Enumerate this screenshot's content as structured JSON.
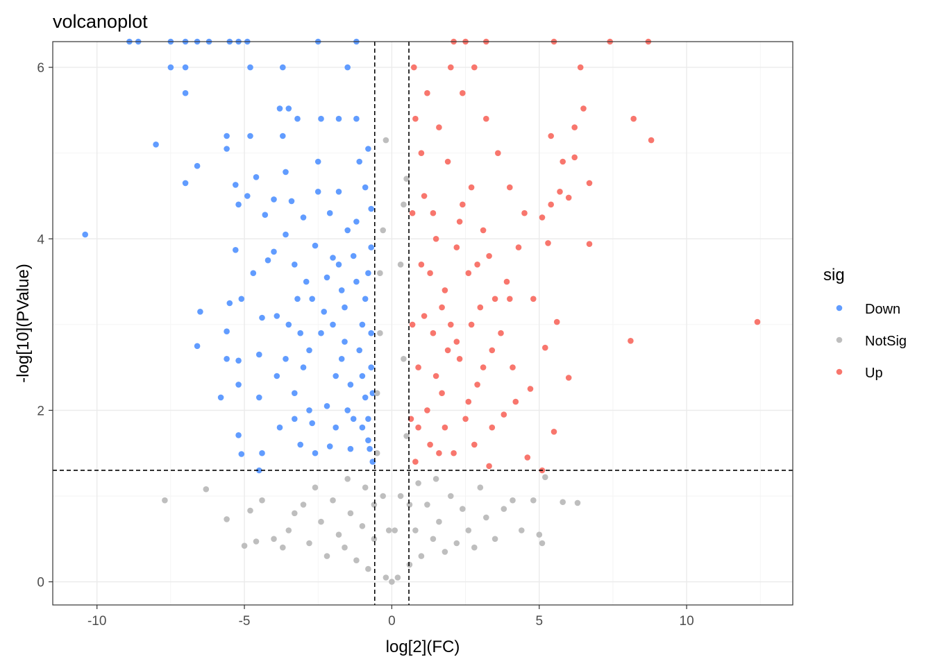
{
  "chart_data": {
    "type": "scatter",
    "title": "volcanoplot",
    "xlabel": "log[2](FC)",
    "ylabel": "-log[10](PValue)",
    "xlim": [
      -11.5,
      13.6
    ],
    "ylim": [
      -0.27,
      6.3
    ],
    "x_ticks": [
      -10,
      -5,
      0,
      5,
      10
    ],
    "x_tick_labels": [
      "-10",
      "-5",
      "0",
      "5",
      "10"
    ],
    "y_ticks": [
      0,
      2,
      4,
      6
    ],
    "y_tick_labels": [
      "0",
      "2",
      "4",
      "6"
    ],
    "grid": true,
    "thresholds": {
      "log2fc": [
        -0.58,
        0.58
      ],
      "neg_log10_p": 1.3
    },
    "legend": {
      "title": "sig",
      "position": "right",
      "entries": [
        {
          "name": "Down",
          "color": "#619CFF"
        },
        {
          "name": "NotSig",
          "color": "#BEBEBE"
        },
        {
          "name": "Up",
          "color": "#F8766D"
        }
      ]
    },
    "series": [
      {
        "name": "Down",
        "color": "#619CFF",
        "points": [
          [
            -10.4,
            4.05
          ],
          [
            -8.0,
            5.1
          ],
          [
            -7.5,
            6.0
          ],
          [
            -7.0,
            6.0
          ],
          [
            -7.0,
            5.7
          ],
          [
            -7.0,
            4.65
          ],
          [
            -6.6,
            4.85
          ],
          [
            -6.5,
            3.15
          ],
          [
            -6.6,
            2.75
          ],
          [
            -5.8,
            2.15
          ],
          [
            -5.6,
            5.2
          ],
          [
            -5.6,
            5.05
          ],
          [
            -5.6,
            2.92
          ],
          [
            -5.6,
            2.6
          ],
          [
            -5.5,
            3.25
          ],
          [
            -5.3,
            3.87
          ],
          [
            -5.3,
            4.63
          ],
          [
            -5.2,
            4.4
          ],
          [
            -5.2,
            2.58
          ],
          [
            -5.2,
            2.3
          ],
          [
            -5.2,
            1.71
          ],
          [
            -5.1,
            1.49
          ],
          [
            -5.1,
            3.3
          ],
          [
            -4.9,
            4.5
          ],
          [
            -4.8,
            5.2
          ],
          [
            -4.8,
            6.0
          ],
          [
            -4.7,
            3.6
          ],
          [
            -4.6,
            4.72
          ],
          [
            -4.5,
            2.65
          ],
          [
            -4.5,
            2.15
          ],
          [
            -4.4,
            3.08
          ],
          [
            -4.4,
            1.5
          ],
          [
            -4.5,
            1.3
          ],
          [
            -4.3,
            4.28
          ],
          [
            -4.2,
            3.75
          ],
          [
            -4.0,
            3.85
          ],
          [
            -4.0,
            4.46
          ],
          [
            -3.9,
            2.4
          ],
          [
            -3.8,
            1.8
          ],
          [
            -3.8,
            5.52
          ],
          [
            -3.7,
            5.2
          ],
          [
            -3.6,
            4.05
          ],
          [
            -3.6,
            4.78
          ],
          [
            -3.7,
            6.0
          ],
          [
            -3.5,
            5.52
          ],
          [
            -3.4,
            4.44
          ],
          [
            -3.3,
            3.7
          ],
          [
            -3.2,
            3.3
          ],
          [
            -3.3,
            2.2
          ],
          [
            -3.1,
            1.6
          ],
          [
            -3.2,
            5.4
          ],
          [
            -3.0,
            4.25
          ],
          [
            -2.9,
            3.5
          ],
          [
            -2.8,
            2.7
          ],
          [
            -2.7,
            1.85
          ],
          [
            -2.6,
            3.92
          ],
          [
            -2.5,
            4.55
          ],
          [
            -2.5,
            4.9
          ],
          [
            -2.4,
            5.4
          ],
          [
            -2.3,
            3.15
          ],
          [
            -2.2,
            2.05
          ],
          [
            -2.1,
            1.58
          ],
          [
            -2.0,
            3.78
          ],
          [
            -1.9,
            2.4
          ],
          [
            -1.8,
            4.55
          ],
          [
            -1.8,
            5.4
          ],
          [
            -1.7,
            3.4
          ],
          [
            -1.6,
            2.8
          ],
          [
            -1.5,
            2.0
          ],
          [
            -1.5,
            6.0
          ],
          [
            -1.4,
            1.55
          ],
          [
            -1.3,
            3.8
          ],
          [
            -1.2,
            4.2
          ],
          [
            -1.2,
            5.4
          ],
          [
            -1.1,
            4.9
          ],
          [
            -1.0,
            3.0
          ],
          [
            -0.9,
            2.15
          ],
          [
            -0.8,
            1.65
          ],
          [
            -0.9,
            4.6
          ],
          [
            -0.8,
            3.6
          ],
          [
            -0.7,
            2.5
          ],
          [
            -0.65,
            1.4
          ],
          [
            -0.7,
            4.35
          ],
          [
            -0.8,
            5.05
          ],
          [
            -8.9,
            6.3
          ],
          [
            -8.6,
            6.3
          ],
          [
            -7.5,
            6.3
          ],
          [
            -7.0,
            6.3
          ],
          [
            -6.6,
            6.3
          ],
          [
            -6.2,
            6.3
          ],
          [
            -5.5,
            6.3
          ],
          [
            -5.2,
            6.3
          ],
          [
            -4.9,
            6.3
          ],
          [
            -2.5,
            6.3
          ],
          [
            -1.2,
            6.3
          ],
          [
            -3.5,
            3.0
          ],
          [
            -3.0,
            2.5
          ],
          [
            -2.8,
            2.0
          ],
          [
            -2.6,
            1.5
          ],
          [
            -2.4,
            2.9
          ],
          [
            -2.2,
            3.55
          ],
          [
            -2.0,
            3.0
          ],
          [
            -1.9,
            1.8
          ],
          [
            -1.7,
            2.6
          ],
          [
            -1.6,
            3.2
          ],
          [
            -1.4,
            2.3
          ],
          [
            -1.3,
            1.9
          ],
          [
            -1.2,
            3.5
          ],
          [
            -1.1,
            2.7
          ],
          [
            -1.0,
            1.8
          ],
          [
            -1.0,
            2.4
          ],
          [
            -0.9,
            3.3
          ],
          [
            -0.8,
            1.9
          ],
          [
            -0.7,
            2.9
          ],
          [
            -0.7,
            3.9
          ],
          [
            -0.75,
            1.55
          ],
          [
            -0.65,
            2.2
          ],
          [
            -1.5,
            4.1
          ],
          [
            -1.8,
            3.7
          ],
          [
            -2.1,
            4.3
          ],
          [
            -2.7,
            3.3
          ],
          [
            -3.1,
            2.9
          ],
          [
            -3.3,
            1.9
          ],
          [
            -3.6,
            2.6
          ],
          [
            -3.9,
            3.1
          ]
        ]
      },
      {
        "name": "NotSig",
        "color": "#BEBEBE",
        "points": [
          [
            -7.7,
            0.95
          ],
          [
            -6.3,
            1.08
          ],
          [
            -5.6,
            0.73
          ],
          [
            -5.0,
            0.42
          ],
          [
            -4.8,
            0.83
          ],
          [
            -4.6,
            0.47
          ],
          [
            -4.4,
            0.95
          ],
          [
            -4.0,
            0.5
          ],
          [
            -3.7,
            0.4
          ],
          [
            -3.5,
            0.6
          ],
          [
            -3.3,
            0.8
          ],
          [
            -3.0,
            0.9
          ],
          [
            -2.8,
            0.45
          ],
          [
            -2.6,
            1.1
          ],
          [
            -2.4,
            0.7
          ],
          [
            -2.2,
            0.3
          ],
          [
            -2.0,
            0.95
          ],
          [
            -1.8,
            0.55
          ],
          [
            -1.6,
            0.4
          ],
          [
            -1.4,
            0.8
          ],
          [
            -1.2,
            0.25
          ],
          [
            -1.0,
            0.65
          ],
          [
            -0.8,
            0.15
          ],
          [
            -0.6,
            0.5
          ],
          [
            -0.5,
            1.5
          ],
          [
            -0.5,
            2.2
          ],
          [
            -0.4,
            2.9
          ],
          [
            -0.4,
            3.6
          ],
          [
            -0.3,
            4.1
          ],
          [
            -0.2,
            0.05
          ],
          [
            0.0,
            0.0
          ],
          [
            0.2,
            0.05
          ],
          [
            -0.2,
            5.15
          ],
          [
            0.3,
            3.7
          ],
          [
            0.4,
            4.4
          ],
          [
            0.4,
            2.6
          ],
          [
            0.5,
            1.7
          ],
          [
            0.5,
            4.7
          ],
          [
            0.6,
            0.2
          ],
          [
            0.8,
            0.6
          ],
          [
            1.0,
            0.3
          ],
          [
            1.2,
            0.9
          ],
          [
            1.4,
            0.5
          ],
          [
            1.6,
            0.7
          ],
          [
            1.8,
            0.35
          ],
          [
            2.0,
            1.0
          ],
          [
            2.2,
            0.45
          ],
          [
            2.4,
            0.85
          ],
          [
            2.6,
            0.6
          ],
          [
            2.8,
            0.4
          ],
          [
            3.0,
            1.1
          ],
          [
            3.2,
            0.75
          ],
          [
            3.5,
            0.5
          ],
          [
            3.8,
            0.85
          ],
          [
            4.1,
            0.95
          ],
          [
            4.4,
            0.6
          ],
          [
            4.8,
            0.95
          ],
          [
            5.0,
            0.55
          ],
          [
            5.1,
            0.45
          ],
          [
            5.2,
            1.22
          ],
          [
            5.8,
            0.93
          ],
          [
            6.3,
            0.92
          ],
          [
            -1.5,
            1.2
          ],
          [
            -0.9,
            1.1
          ],
          [
            0.9,
            1.15
          ],
          [
            1.5,
            1.2
          ],
          [
            -0.3,
            1.0
          ],
          [
            0.3,
            1.0
          ],
          [
            -0.1,
            0.6
          ],
          [
            0.1,
            0.6
          ],
          [
            -0.6,
            0.9
          ],
          [
            0.6,
            0.9
          ]
        ]
      },
      {
        "name": "Up",
        "color": "#F8766D",
        "points": [
          [
            12.4,
            3.03
          ],
          [
            8.8,
            5.15
          ],
          [
            8.2,
            5.4
          ],
          [
            8.1,
            2.81
          ],
          [
            6.7,
            4.65
          ],
          [
            6.7,
            3.94
          ],
          [
            6.5,
            5.52
          ],
          [
            6.4,
            6.0
          ],
          [
            6.2,
            5.3
          ],
          [
            6.2,
            4.95
          ],
          [
            6.0,
            2.38
          ],
          [
            6.0,
            4.48
          ],
          [
            5.8,
            4.9
          ],
          [
            5.6,
            3.03
          ],
          [
            5.7,
            4.55
          ],
          [
            5.5,
            1.75
          ],
          [
            5.4,
            4.4
          ],
          [
            5.4,
            5.2
          ],
          [
            5.3,
            3.95
          ],
          [
            5.2,
            2.73
          ],
          [
            5.1,
            4.25
          ],
          [
            5.1,
            1.3
          ],
          [
            4.8,
            3.3
          ],
          [
            4.7,
            2.25
          ],
          [
            4.6,
            1.45
          ],
          [
            4.5,
            4.3
          ],
          [
            4.3,
            3.9
          ],
          [
            4.1,
            2.5
          ],
          [
            4.0,
            4.6
          ],
          [
            3.9,
            3.5
          ],
          [
            3.8,
            1.95
          ],
          [
            3.6,
            5.0
          ],
          [
            3.5,
            3.3
          ],
          [
            3.4,
            2.7
          ],
          [
            3.3,
            1.35
          ],
          [
            3.2,
            5.4
          ],
          [
            3.1,
            4.1
          ],
          [
            3.0,
            3.2
          ],
          [
            2.9,
            2.3
          ],
          [
            2.8,
            6.0
          ],
          [
            2.7,
            4.6
          ],
          [
            2.6,
            3.6
          ],
          [
            2.5,
            1.9
          ],
          [
            2.4,
            5.7
          ],
          [
            2.3,
            4.2
          ],
          [
            2.2,
            2.8
          ],
          [
            2.1,
            1.5
          ],
          [
            2.0,
            6.0
          ],
          [
            1.9,
            4.9
          ],
          [
            1.8,
            3.4
          ],
          [
            1.7,
            2.2
          ],
          [
            1.6,
            5.3
          ],
          [
            1.5,
            4.0
          ],
          [
            1.4,
            2.9
          ],
          [
            1.3,
            1.6
          ],
          [
            1.2,
            5.7
          ],
          [
            1.1,
            4.5
          ],
          [
            1.0,
            3.7
          ],
          [
            0.9,
            2.5
          ],
          [
            0.8,
            1.4
          ],
          [
            0.75,
            6.0
          ],
          [
            0.7,
            4.3
          ],
          [
            0.7,
            3.0
          ],
          [
            0.65,
            1.9
          ],
          [
            0.8,
            5.4
          ],
          [
            1.0,
            5.0
          ],
          [
            2.1,
            6.3
          ],
          [
            2.5,
            6.3
          ],
          [
            3.2,
            6.3
          ],
          [
            5.5,
            6.3
          ],
          [
            7.4,
            6.3
          ],
          [
            8.7,
            6.3
          ],
          [
            1.2,
            2.0
          ],
          [
            1.5,
            2.4
          ],
          [
            1.8,
            1.8
          ],
          [
            2.0,
            3.0
          ],
          [
            2.3,
            2.6
          ],
          [
            2.6,
            2.1
          ],
          [
            2.9,
            3.7
          ],
          [
            3.1,
            2.5
          ],
          [
            3.4,
            1.8
          ],
          [
            3.7,
            2.9
          ],
          [
            4.0,
            3.3
          ],
          [
            4.2,
            2.1
          ],
          [
            1.1,
            3.1
          ],
          [
            1.3,
            3.6
          ],
          [
            1.6,
            1.5
          ],
          [
            1.9,
            2.7
          ],
          [
            2.2,
            3.9
          ],
          [
            2.7,
            3.0
          ],
          [
            0.9,
            1.8
          ],
          [
            1.4,
            4.3
          ],
          [
            1.7,
            3.2
          ],
          [
            2.4,
            4.4
          ],
          [
            2.8,
            1.6
          ],
          [
            3.3,
            3.8
          ]
        ]
      }
    ]
  }
}
